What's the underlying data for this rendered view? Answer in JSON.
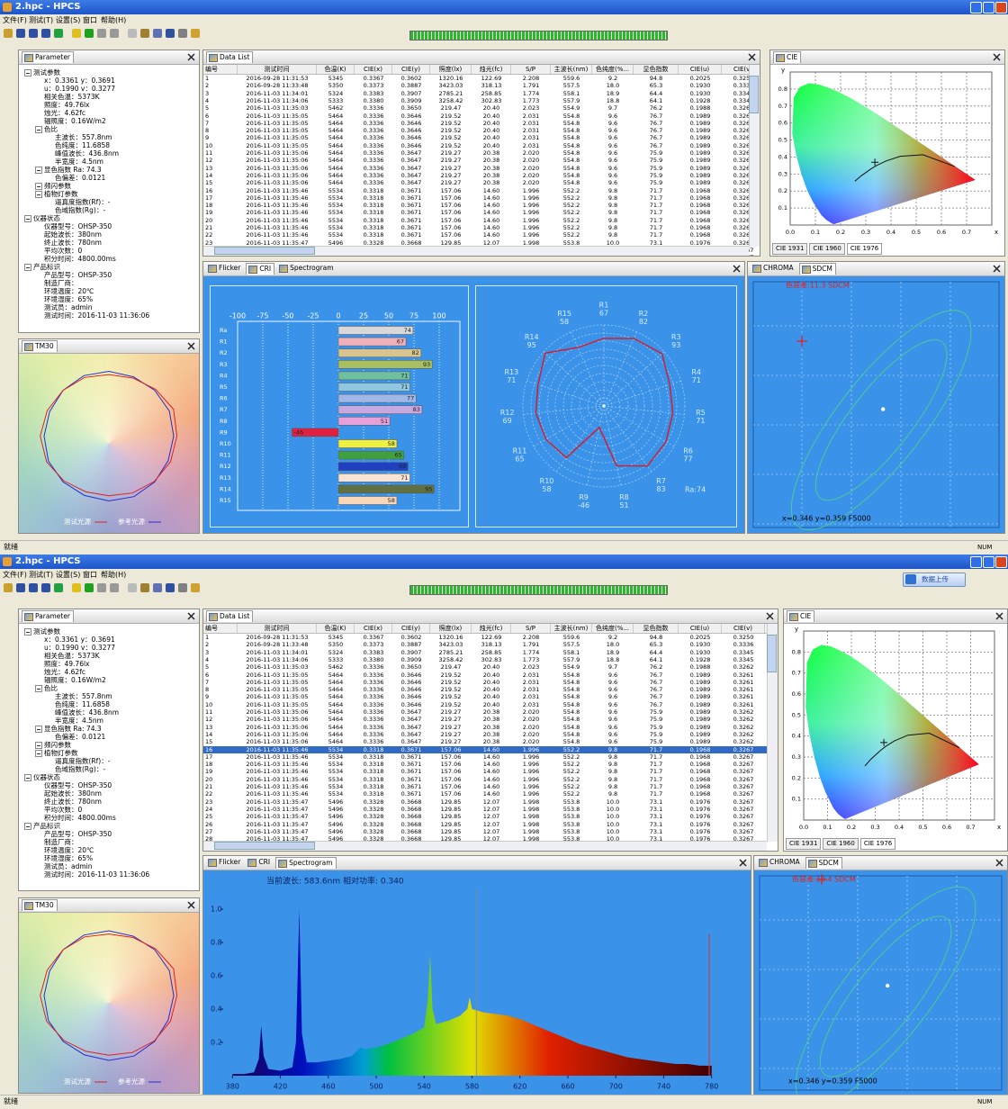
{
  "app": {
    "title": "2.hpc - HPCS",
    "menu": [
      "文件(F)",
      "测试(T)",
      "设置(S)",
      "窗口",
      "帮助(H)"
    ],
    "status": "就绪",
    "status_right": "NUM",
    "upload": "数据上传"
  },
  "panels": {
    "parameter": "Parameter",
    "data_list": "Data List",
    "cie": "CIE",
    "tm30": "TM30",
    "flicker": "Flicker",
    "cri": "CRI",
    "spectrogram": "Spectrogram",
    "chroma": "CHROMA",
    "sdcm": "SDCM",
    "cie_tabs": [
      "CIE 1931",
      "CIE 1960",
      "CIE 1976"
    ]
  },
  "windows": [
    {
      "view": "cri",
      "sdcm_label": "色容差:11.3 SDCM"
    },
    {
      "view": "spectrogram",
      "sdcm_label": "色容差:19.4 SDCM",
      "selected_row": 15,
      "upload_button": true
    }
  ],
  "parameter_tree": [
    {
      "label": "测试参数",
      "level": 0,
      "items": [
        "x：0.3361  y：0.3691",
        "u：0.1990  v：0.3277",
        "相关色温：5373K",
        "照度：49.76lx",
        "烛光：4.62fc",
        "辐照度：0.16W/m2"
      ]
    },
    {
      "label": "色比",
      "level": 1,
      "items": [
        "主波长：557.8nm",
        "色纯度：11.6858",
        "峰值波长：436.8nm",
        "半宽度：4.5nm"
      ]
    },
    {
      "label": "显色指数 Ra: 74.3",
      "level": 1,
      "items": [
        "色偏差：0.0121"
      ]
    },
    {
      "label": "频闪参数",
      "level": 1,
      "items": []
    },
    {
      "label": "植物灯参数",
      "level": 1,
      "items": [
        "逼真度指数(Rf)：-",
        "色域指数(Rg)：-"
      ]
    },
    {
      "label": "仪器状态",
      "level": 0,
      "items": [
        "仪器型号：OHSP-350",
        "起始波长：380nm",
        "终止波长：780nm",
        "平均次数：0",
        "积分时间：4800.00ms"
      ]
    },
    {
      "label": "产品标识",
      "level": 0,
      "items": [
        "产品型号：OHSP-350",
        "制造厂商：",
        "环境温度：20℃",
        "环境湿度：65%",
        "测试员：admin",
        "测试时间：2016-11-03 11:36:06"
      ]
    }
  ],
  "table": {
    "columns": [
      "编号",
      "测试时间",
      "色温(K)",
      "CIE(x)",
      "CIE(y)",
      "照度(lx)",
      "烛光(fc)",
      "S/P",
      "主波长(nm)",
      "色纯度(%...",
      "显色指数",
      "CIE(u)",
      "CIE(v)"
    ],
    "rows": [
      [
        "1",
        "2016-09-28 11:31:53",
        "5345",
        "0.3367",
        "0.3602",
        "1320.16",
        "122.69",
        "2.208",
        "559.6",
        "9.2",
        "94.8",
        "0.2025",
        "0.3250"
      ],
      [
        "2",
        "2016-09-28 11:33:48",
        "5350",
        "0.3373",
        "0.3887",
        "3423.03",
        "318.13",
        "1.791",
        "557.5",
        "18.0",
        "65.3",
        "0.1930",
        "0.3336"
      ],
      [
        "3",
        "2016-11-03 11:34:01",
        "5324",
        "0.3383",
        "0.3907",
        "2785.21",
        "258.85",
        "1.774",
        "558.1",
        "18.9",
        "64.4",
        "0.1930",
        "0.3345"
      ],
      [
        "4",
        "2016-11-03 11:34:06",
        "5333",
        "0.3380",
        "0.3909",
        "3258.42",
        "302.83",
        "1.773",
        "557.9",
        "18.8",
        "64.1",
        "0.1928",
        "0.3345"
      ],
      [
        "5",
        "2016-11-03 11:35:03",
        "5462",
        "0.3336",
        "0.3650",
        "219.47",
        "20.40",
        "2.023",
        "554.9",
        "9.7",
        "76.2",
        "0.1988",
        "0.3262"
      ],
      [
        "6",
        "2016-11-03 11:35:05",
        "5464",
        "0.3336",
        "0.3646",
        "219.52",
        "20.40",
        "2.031",
        "554.8",
        "9.6",
        "76.7",
        "0.1989",
        "0.3261"
      ],
      [
        "7",
        "2016-11-03 11:35:05",
        "5464",
        "0.3336",
        "0.3646",
        "219.52",
        "20.40",
        "2.031",
        "554.8",
        "9.6",
        "76.7",
        "0.1989",
        "0.3261"
      ],
      [
        "8",
        "2016-11-03 11:35:05",
        "5464",
        "0.3336",
        "0.3646",
        "219.52",
        "20.40",
        "2.031",
        "554.8",
        "9.6",
        "76.7",
        "0.1989",
        "0.3261"
      ],
      [
        "9",
        "2016-11-03 11:35:05",
        "5464",
        "0.3336",
        "0.3646",
        "219.52",
        "20.40",
        "2.031",
        "554.8",
        "9.6",
        "76.7",
        "0.1989",
        "0.3261"
      ],
      [
        "10",
        "2016-11-03 11:35:05",
        "5464",
        "0.3336",
        "0.3646",
        "219.52",
        "20.40",
        "2.031",
        "554.8",
        "9.6",
        "76.7",
        "0.1989",
        "0.3261"
      ],
      [
        "11",
        "2016-11-03 11:35:06",
        "5464",
        "0.3336",
        "0.3647",
        "219.27",
        "20.38",
        "2.020",
        "554.8",
        "9.6",
        "75.9",
        "0.1989",
        "0.3262"
      ],
      [
        "12",
        "2016-11-03 11:35:06",
        "5464",
        "0.3336",
        "0.3647",
        "219.27",
        "20.38",
        "2.020",
        "554.8",
        "9.6",
        "75.9",
        "0.1989",
        "0.3262"
      ],
      [
        "13",
        "2016-11-03 11:35:06",
        "5464",
        "0.3336",
        "0.3647",
        "219.27",
        "20.38",
        "2.020",
        "554.8",
        "9.6",
        "75.9",
        "0.1989",
        "0.3262"
      ],
      [
        "14",
        "2016-11-03 11:35:06",
        "5464",
        "0.3336",
        "0.3647",
        "219.27",
        "20.38",
        "2.020",
        "554.8",
        "9.6",
        "75.9",
        "0.1989",
        "0.3262"
      ],
      [
        "15",
        "2016-11-03 11:35:06",
        "5464",
        "0.3336",
        "0.3647",
        "219.27",
        "20.38",
        "2.020",
        "554.8",
        "9.6",
        "75.9",
        "0.1989",
        "0.3262"
      ],
      [
        "16",
        "2016-11-03 11:35:46",
        "5534",
        "0.3318",
        "0.3671",
        "157.06",
        "14.60",
        "1.996",
        "552.2",
        "9.8",
        "71.7",
        "0.1968",
        "0.3267"
      ],
      [
        "17",
        "2016-11-03 11:35:46",
        "5534",
        "0.3318",
        "0.3671",
        "157.06",
        "14.60",
        "1.996",
        "552.2",
        "9.8",
        "71.7",
        "0.1968",
        "0.3267"
      ],
      [
        "18",
        "2016-11-03 11:35:46",
        "5534",
        "0.3318",
        "0.3671",
        "157.06",
        "14.60",
        "1.996",
        "552.2",
        "9.8",
        "71.7",
        "0.1968",
        "0.3267"
      ],
      [
        "19",
        "2016-11-03 11:35:46",
        "5534",
        "0.3318",
        "0.3671",
        "157.06",
        "14.60",
        "1.996",
        "552.2",
        "9.8",
        "71.7",
        "0.1968",
        "0.3267"
      ],
      [
        "20",
        "2016-11-03 11:35:46",
        "5534",
        "0.3318",
        "0.3671",
        "157.06",
        "14.60",
        "1.996",
        "552.2",
        "9.8",
        "71.7",
        "0.1968",
        "0.3267"
      ],
      [
        "21",
        "2016-11-03 11:35:46",
        "5534",
        "0.3318",
        "0.3671",
        "157.06",
        "14.60",
        "1.996",
        "552.2",
        "9.8",
        "71.7",
        "0.1968",
        "0.3267"
      ],
      [
        "22",
        "2016-11-03 11:35:46",
        "5534",
        "0.3318",
        "0.3671",
        "157.06",
        "14.60",
        "1.996",
        "552.2",
        "9.8",
        "71.7",
        "0.1968",
        "0.3267"
      ],
      [
        "23",
        "2016-11-03 11:35:47",
        "5496",
        "0.3328",
        "0.3668",
        "129.85",
        "12.07",
        "1.998",
        "553.8",
        "10.0",
        "73.1",
        "0.1976",
        "0.3267"
      ],
      [
        "24",
        "2016-11-03 11:35:47",
        "5496",
        "0.3328",
        "0.3668",
        "129.85",
        "12.07",
        "1.998",
        "553.8",
        "10.0",
        "73.1",
        "0.1976",
        "0.3267"
      ],
      [
        "25",
        "2016-11-03 11:35:47",
        "5496",
        "0.3328",
        "0.3668",
        "129.85",
        "12.07",
        "1.998",
        "553.8",
        "10.0",
        "73.1",
        "0.1976",
        "0.3267"
      ],
      [
        "26",
        "2016-11-03 11:35:47",
        "5496",
        "0.3328",
        "0.3668",
        "129.85",
        "12.07",
        "1.998",
        "553.8",
        "10.0",
        "73.1",
        "0.1976",
        "0.3267"
      ],
      [
        "27",
        "2016-11-03 11:35:47",
        "5496",
        "0.3328",
        "0.3668",
        "129.85",
        "12.07",
        "1.998",
        "553.8",
        "10.0",
        "73.1",
        "0.1976",
        "0.3267"
      ],
      [
        "28",
        "2016-11-03 11:35:47",
        "5496",
        "0.3328",
        "0.3668",
        "129.85",
        "12.07",
        "1.998",
        "553.8",
        "10.0",
        "73.1",
        "0.1976",
        "0.3267"
      ]
    ]
  },
  "cie": {
    "x_axis": "x",
    "y_axis": "y",
    "xlim": [
      0,
      0.8
    ],
    "ylim": [
      0,
      0.9
    ],
    "xticks": [
      {
        "value": 0,
        "label": "0.0"
      },
      0.1,
      0.2,
      0.3,
      0.4,
      0.5,
      0.6,
      0.7
    ],
    "yticks": [
      0.1,
      0.2,
      0.3,
      0.4,
      0.5,
      0.6,
      0.7,
      0.8
    ],
    "point": [
      0.3361,
      0.3691
    ],
    "locus": [
      [
        0.1741,
        0.005
      ],
      [
        0.1666,
        0.0089
      ],
      [
        0.144,
        0.0297
      ],
      [
        0.1241,
        0.0578
      ],
      [
        0.0913,
        0.1327
      ],
      [
        0.0687,
        0.2007
      ],
      [
        0.0454,
        0.295
      ],
      [
        0.0235,
        0.4127
      ],
      [
        0.0082,
        0.5384
      ],
      [
        0.0139,
        0.7502
      ],
      [
        0.0389,
        0.812
      ],
      [
        0.0743,
        0.8338
      ],
      [
        0.1142,
        0.8262
      ],
      [
        0.1547,
        0.8059
      ],
      [
        0.1929,
        0.7816
      ],
      [
        0.2296,
        0.7543
      ],
      [
        0.2658,
        0.7243
      ],
      [
        0.3016,
        0.6923
      ],
      [
        0.3373,
        0.6589
      ],
      [
        0.3731,
        0.6245
      ],
      [
        0.4087,
        0.5896
      ],
      [
        0.4441,
        0.5547
      ],
      [
        0.4788,
        0.5202
      ],
      [
        0.5125,
        0.4866
      ],
      [
        0.5448,
        0.4544
      ],
      [
        0.5752,
        0.4242
      ],
      [
        0.6029,
        0.3965
      ],
      [
        0.627,
        0.3725
      ],
      [
        0.6482,
        0.3514
      ],
      [
        0.6658,
        0.334
      ],
      [
        0.6915,
        0.3083
      ],
      [
        0.7347,
        0.2653
      ]
    ],
    "planckian": [
      [
        0.6528,
        0.3444
      ],
      [
        0.5267,
        0.4133
      ],
      [
        0.4369,
        0.4041
      ],
      [
        0.3805,
        0.3768
      ],
      [
        0.3451,
        0.3516
      ],
      [
        0.3221,
        0.3318
      ],
      [
        0.2806,
        0.2883
      ],
      [
        0.2565,
        0.2574
      ]
    ]
  },
  "tm30": {
    "legend": [
      "测试光源",
      "参考光源"
    ],
    "test": [
      1.05,
      1.08,
      1.02,
      0.97,
      0.95,
      0.98,
      1.0,
      1.03,
      1.06,
      1.04,
      0.98,
      0.93,
      0.92,
      0.95,
      0.99,
      1.03
    ],
    "reference": [
      1,
      1.01,
      1,
      0.99,
      1,
      1.01,
      1,
      0.99,
      1,
      1.01,
      1,
      0.99,
      1,
      1.01,
      1,
      0.99
    ]
  },
  "cri": {
    "categories": [
      "Ra",
      "R1",
      "R2",
      "R3",
      "R4",
      "R5",
      "R6",
      "R7",
      "R8",
      "R9",
      "R10",
      "R11",
      "R12",
      "R13",
      "R14",
      "R15"
    ],
    "values": [
      74,
      67,
      82,
      93,
      71,
      71,
      77,
      83,
      51,
      -46,
      58,
      65,
      69,
      71,
      95,
      58
    ],
    "colors": [
      "#d8d8d8",
      "#f2b0b8",
      "#d8c48e",
      "#a8c060",
      "#70c0a0",
      "#90c8e0",
      "#a0b8e8",
      "#c8a8e0",
      "#e8a0d8",
      "#e02040",
      "#f0f040",
      "#40a040",
      "#2040c0",
      "#f8e4d4",
      "#607040",
      "#f8d8b8"
    ],
    "xticks": [
      -100,
      -75,
      -50,
      -25,
      0,
      25,
      50,
      75,
      100
    ],
    "radar_note": "Ra:74"
  },
  "spectrogram": {
    "readout": "当前波长: 583.6nm 相对功率: 0.340",
    "xlim": [
      370,
      790
    ],
    "ylim": [
      0,
      1.2
    ],
    "xticks": [
      380,
      420,
      460,
      500,
      540,
      580,
      620,
      660,
      700,
      740,
      780
    ],
    "yticks": [
      0.2,
      0.4,
      0.6,
      0.8,
      {
        "value": 1,
        "label": "1.0"
      }
    ],
    "x": [
      380,
      390,
      398,
      402,
      404,
      406,
      410,
      420,
      430,
      433,
      435.8,
      438,
      442,
      450,
      460,
      470,
      480,
      487,
      490,
      500,
      510,
      520,
      530,
      540,
      543,
      545,
      547,
      550,
      560,
      570,
      576,
      578,
      580,
      590,
      600,
      610,
      620,
      630,
      640,
      650,
      660,
      670,
      680,
      690,
      700,
      710,
      720,
      730,
      740,
      750,
      760,
      770,
      780
    ],
    "values": [
      0.01,
      0.01,
      0.02,
      0.1,
      0.3,
      0.12,
      0.04,
      0.03,
      0.05,
      0.2,
      1.0,
      0.25,
      0.08,
      0.08,
      0.09,
      0.1,
      0.12,
      0.17,
      0.16,
      0.17,
      0.19,
      0.22,
      0.25,
      0.29,
      0.45,
      0.73,
      0.4,
      0.31,
      0.33,
      0.36,
      0.4,
      0.47,
      0.4,
      0.38,
      0.37,
      0.36,
      0.34,
      0.31,
      0.28,
      0.25,
      0.22,
      0.19,
      0.17,
      0.15,
      0.13,
      0.11,
      0.1,
      0.09,
      0.08,
      0.07,
      0.07,
      0.06,
      0.06
    ]
  },
  "sdcm": {
    "coords": "x=0.346 y=0.359 F5000"
  }
}
